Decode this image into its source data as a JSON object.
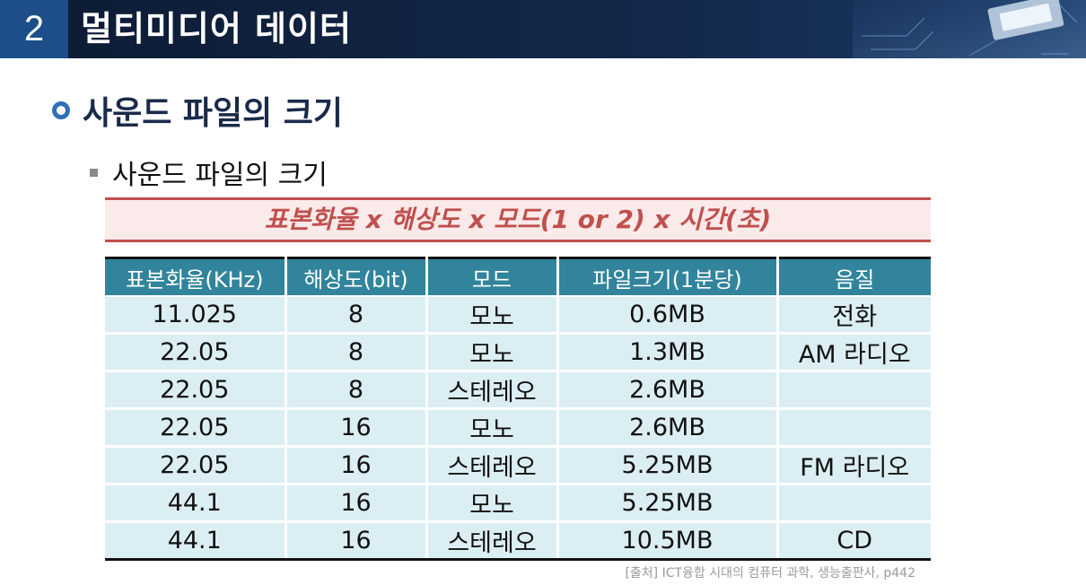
{
  "header": {
    "number": "2",
    "title": "멀티미디어 데이터"
  },
  "section": {
    "title": "사운드 파일의 크기",
    "subtitle": "사운드 파일의 크기"
  },
  "formula": "표본화율 x 해상도 x 모드(1 or 2) x 시간(초)",
  "table": {
    "headers": [
      "표본화율(KHz)",
      "해상도(bit)",
      "모드",
      "파일크기(1분당)",
      "음질"
    ],
    "rows": [
      [
        "11.025",
        "8",
        "모노",
        "0.6MB",
        "전화"
      ],
      [
        "22.05",
        "8",
        "모노",
        "1.3MB",
        "AM 라디오"
      ],
      [
        "22.05",
        "8",
        "스테레오",
        "2.6MB",
        ""
      ],
      [
        "22.05",
        "16",
        "모노",
        "2.6MB",
        ""
      ],
      [
        "22.05",
        "16",
        "스테레오",
        "5.25MB",
        "FM 라디오"
      ],
      [
        "44.1",
        "16",
        "모노",
        "5.25MB",
        ""
      ],
      [
        "44.1",
        "16",
        "스테레오",
        "10.5MB",
        "CD"
      ]
    ]
  },
  "source": "[출처] ICT융합 시대의 컴퓨터 과학, 생능출판사, p442",
  "colors": {
    "header_bg": "#13284a",
    "header_number_bg": "#1d4e89",
    "formula_accent": "#c0504d",
    "table_header": "#31849b",
    "table_cell": "#dbeef4"
  }
}
